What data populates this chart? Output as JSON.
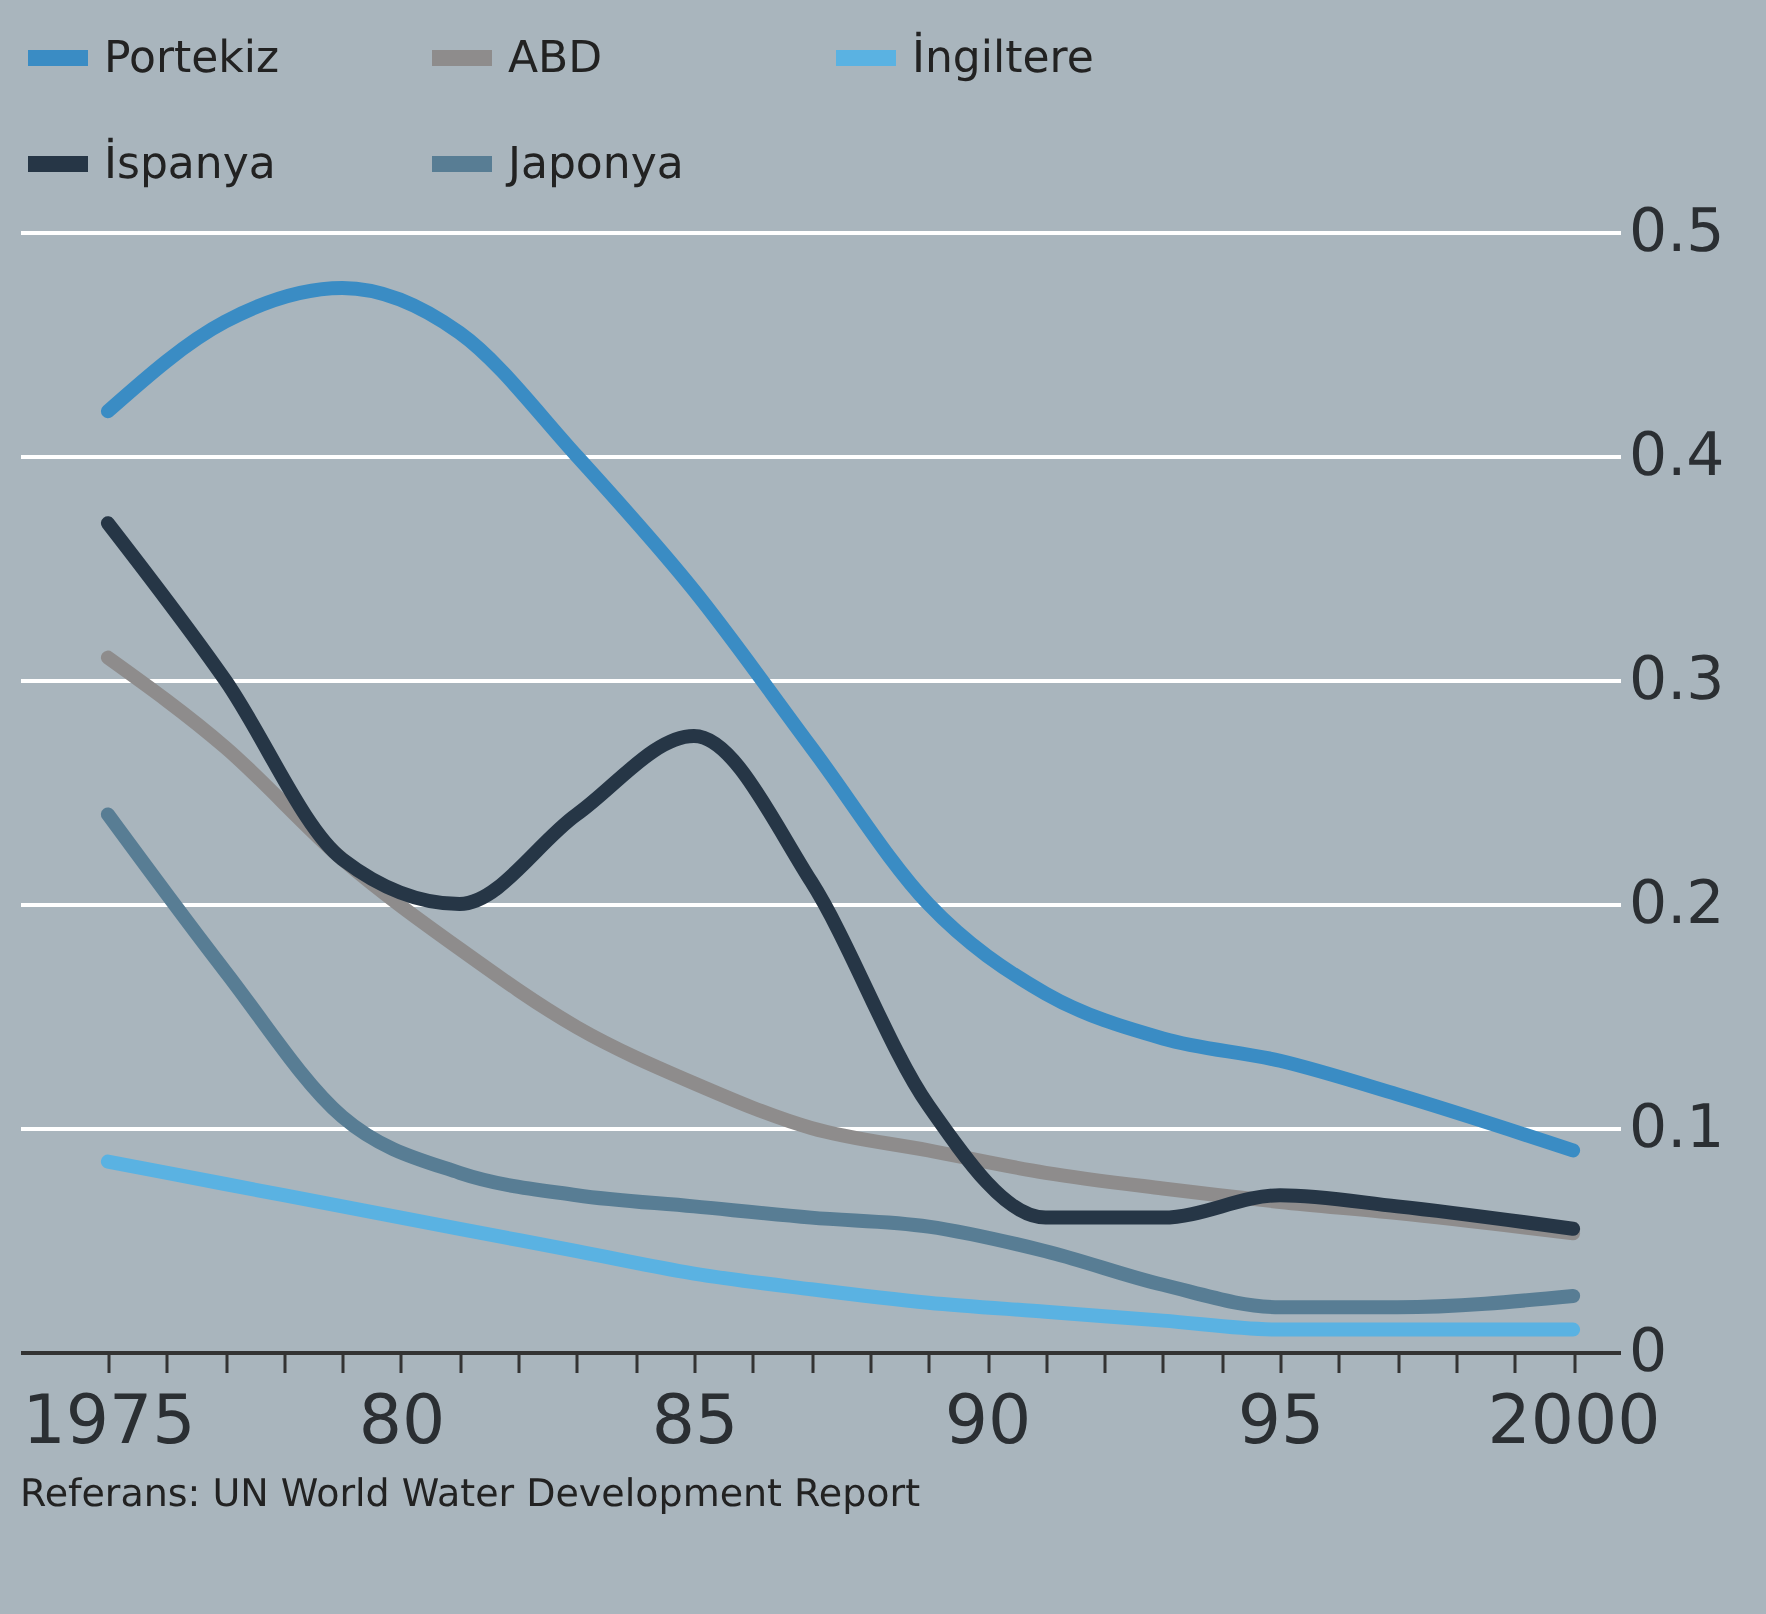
{
  "chart_data": {
    "type": "line",
    "x": [
      1975,
      1977,
      1979,
      1981,
      1983,
      1985,
      1987,
      1989,
      1991,
      1993,
      1995,
      1997,
      2000
    ],
    "series": [
      {
        "name": "Portekiz",
        "color": "#3a8cc4",
        "values": [
          0.42,
          0.46,
          0.475,
          0.455,
          0.4,
          0.34,
          0.27,
          0.2,
          0.16,
          0.14,
          0.13,
          0.115,
          0.09
        ]
      },
      {
        "name": "ABD",
        "color": "#8e8c8c",
        "values": [
          0.31,
          0.27,
          0.22,
          0.18,
          0.145,
          0.12,
          0.1,
          0.09,
          0.08,
          0.073,
          0.067,
          0.062,
          0.053
        ]
      },
      {
        "name": "İngiltere",
        "color": "#5ab2e2",
        "values": [
          0.085,
          0.075,
          0.065,
          0.055,
          0.045,
          0.035,
          0.028,
          0.022,
          0.018,
          0.014,
          0.01,
          0.01,
          0.01
        ]
      },
      {
        "name": "İspanya",
        "color": "#263646",
        "values": [
          0.37,
          0.3,
          0.22,
          0.2,
          0.24,
          0.275,
          0.21,
          0.11,
          0.06,
          0.06,
          0.07,
          0.065,
          0.055
        ]
      },
      {
        "name": "Japonya",
        "color": "#587d94",
        "values": [
          0.24,
          0.17,
          0.105,
          0.08,
          0.07,
          0.065,
          0.06,
          0.056,
          0.045,
          0.03,
          0.02,
          0.02,
          0.025
        ]
      }
    ],
    "xlim": [
      1973.5,
      2000.8
    ],
    "xticks": [
      1975,
      {
        "value": 1976,
        "label": null
      },
      {
        "value": 1977,
        "label": null
      },
      {
        "value": 1978,
        "label": null
      },
      {
        "value": 1979,
        "label": null
      },
      {
        "value": 1980,
        "label": "80"
      },
      {
        "value": 1981,
        "label": null
      },
      {
        "value": 1982,
        "label": null
      },
      {
        "value": 1983,
        "label": null
      },
      {
        "value": 1984,
        "label": null
      },
      {
        "value": 1985,
        "label": "85"
      },
      {
        "value": 1986,
        "label": null
      },
      {
        "value": 1987,
        "label": null
      },
      {
        "value": 1988,
        "label": null
      },
      {
        "value": 1989,
        "label": null
      },
      {
        "value": 1990,
        "label": "90"
      },
      {
        "value": 1991,
        "label": null
      },
      {
        "value": 1992,
        "label": null
      },
      {
        "value": 1993,
        "label": null
      },
      {
        "value": 1994,
        "label": null
      },
      {
        "value": 1995,
        "label": "95"
      },
      {
        "value": 1996,
        "label": null
      },
      {
        "value": 1997,
        "label": null
      },
      {
        "value": 1998,
        "label": null
      },
      {
        "value": 1999,
        "label": null
      },
      2000
    ],
    "ylim": [
      0,
      0.5
    ],
    "yticks": [
      0,
      0.1,
      0.2,
      0.3,
      0.4,
      0.5
    ],
    "grid": "y",
    "legend": "top",
    "annotations": [
      "Referans: UN World Water Development Report"
    ]
  }
}
